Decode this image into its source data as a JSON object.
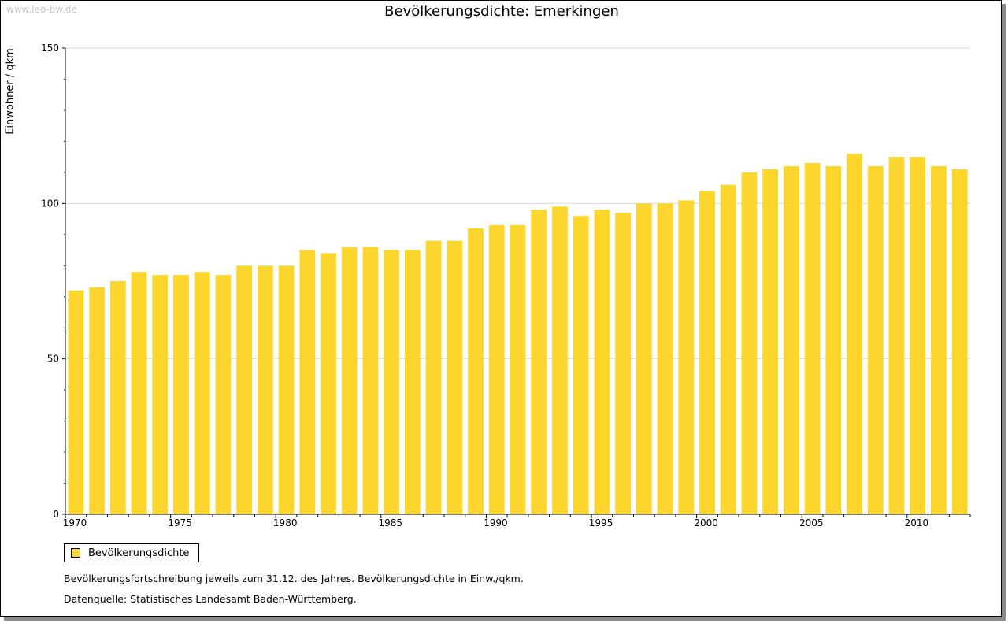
{
  "watermark": "www.leo-bw.de",
  "colors": {
    "bar": "#FCD62D",
    "grid": "#d9d9d9",
    "axis": "#000000"
  },
  "chart_data": {
    "type": "bar",
    "title": "Bevölkerungsdichte: Emerkingen",
    "xlabel": "",
    "ylabel": "Einwohner / qkm",
    "ylim": [
      0,
      150
    ],
    "y_ticks": [
      0,
      50,
      100,
      150
    ],
    "x_tick_labels": [
      "1970",
      "1975",
      "1980",
      "1985",
      "1990",
      "1995",
      "2000",
      "2005",
      "2010"
    ],
    "categories": [
      1970,
      1971,
      1972,
      1973,
      1974,
      1975,
      1976,
      1977,
      1978,
      1979,
      1980,
      1981,
      1982,
      1983,
      1984,
      1985,
      1986,
      1987,
      1988,
      1989,
      1990,
      1991,
      1992,
      1993,
      1994,
      1995,
      1996,
      1997,
      1998,
      1999,
      2000,
      2001,
      2002,
      2003,
      2004,
      2005,
      2006,
      2007,
      2008,
      2009,
      2010,
      2011,
      2012
    ],
    "series": [
      {
        "name": "Bevölkerungsdichte",
        "values": [
          72,
          73,
          75,
          78,
          77,
          77,
          78,
          77,
          80,
          80,
          80,
          85,
          84,
          86,
          86,
          85,
          85,
          88,
          88,
          92,
          93,
          93,
          98,
          99,
          96,
          98,
          97,
          100,
          100,
          101,
          104,
          106,
          110,
          111,
          112,
          113,
          112,
          116,
          112,
          115,
          115,
          112,
          111
        ]
      }
    ],
    "grid": true,
    "legend_position": "bottom-left"
  },
  "legend": {
    "label": "Bevölkerungsdichte"
  },
  "notes": {
    "line1": "Bevölkerungsfortschreibung jeweils zum 31.12. des Jahres. Bevölkerungsdichte in Einw./qkm.",
    "line2": "Datenquelle: Statistisches Landesamt Baden-Württemberg."
  }
}
